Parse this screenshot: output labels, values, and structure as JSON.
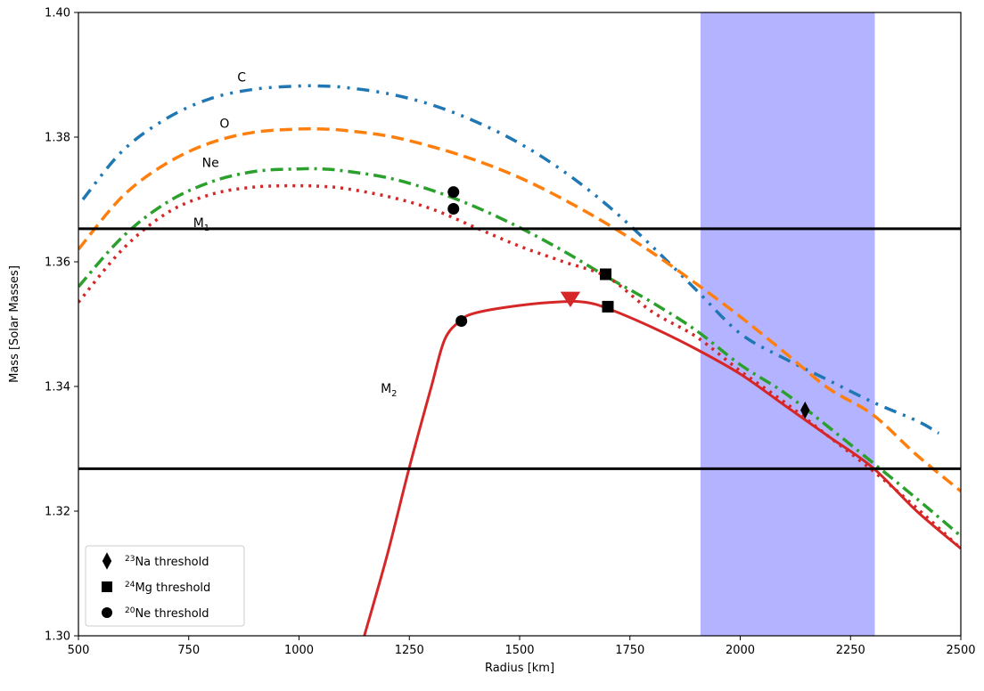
{
  "chart_data": {
    "type": "line",
    "title": "",
    "xlabel": "Radius [km]",
    "ylabel": "Mass [Solar Masses]",
    "xlim": [
      500,
      2500
    ],
    "ylim": [
      1.3,
      1.4
    ],
    "xticks": [
      500,
      750,
      1000,
      1250,
      1500,
      1750,
      2000,
      2250,
      2500
    ],
    "yticks": [
      1.3,
      1.32,
      1.34,
      1.36,
      1.38,
      1.4
    ],
    "xtick_labels": [
      "500",
      "750",
      "1000",
      "1250",
      "1500",
      "1750",
      "2000",
      "2250",
      "2500"
    ],
    "ytick_labels": [
      "1.30",
      "1.32",
      "1.34",
      "1.36",
      "1.38",
      "1.40"
    ],
    "grid": false,
    "legend_position": "bottom-left",
    "shaded_band": {
      "x": [
        1910,
        2305
      ],
      "color": "#b3b3ff"
    },
    "hlines": [
      {
        "y": 1.3653,
        "label": "M",
        "subscript": "1",
        "label_x": 760
      },
      {
        "y": 1.3268,
        "color": "#000000"
      }
    ],
    "series": [
      {
        "label": "C",
        "label_at": [
          860,
          1.3889
        ],
        "color": "#1f77b4",
        "style": "dashdotdot",
        "x": [
          510,
          600,
          700,
          800,
          900,
          1000,
          1050,
          1100,
          1200,
          1300,
          1400,
          1500,
          1600,
          1700,
          1800,
          1900,
          2000,
          2100,
          2200,
          2300,
          2400,
          2450
        ],
        "y": [
          1.37,
          1.3778,
          1.383,
          1.3862,
          1.3877,
          1.3882,
          1.3882,
          1.388,
          1.387,
          1.3852,
          1.3825,
          1.379,
          1.3745,
          1.369,
          1.3625,
          1.3555,
          1.3485,
          1.3445,
          1.341,
          1.3375,
          1.3345,
          1.3325
        ]
      },
      {
        "label": "O",
        "label_at": [
          820,
          1.3815
        ],
        "color": "#ff7f0e",
        "style": "dashed",
        "x": [
          500,
          600,
          700,
          800,
          900,
          1000,
          1050,
          1100,
          1200,
          1300,
          1400,
          1500,
          1600,
          1700,
          1800,
          1900,
          2000,
          2100,
          2200,
          2300,
          2400,
          2500
        ],
        "y": [
          1.362,
          1.3705,
          1.3758,
          1.3791,
          1.3808,
          1.3813,
          1.3813,
          1.3811,
          1.3802,
          1.3785,
          1.3763,
          1.3735,
          1.37,
          1.366,
          1.3615,
          1.3565,
          1.3512,
          1.3455,
          1.3397,
          1.3355,
          1.329,
          1.3232
        ]
      },
      {
        "label": "Ne",
        "label_at": [
          780,
          1.3752
        ],
        "color": "#2ca02c",
        "style": "dashdot",
        "x": [
          500,
          600,
          700,
          800,
          900,
          1000,
          1050,
          1100,
          1200,
          1300,
          1400,
          1500,
          1600,
          1700,
          1800,
          1900,
          2000,
          2100,
          2200,
          2300,
          2400,
          2500
        ],
        "y": [
          1.356,
          1.364,
          1.3695,
          1.3728,
          1.3745,
          1.3749,
          1.3749,
          1.3746,
          1.3735,
          1.3715,
          1.3688,
          1.3655,
          1.3617,
          1.3575,
          1.3535,
          1.349,
          1.3435,
          1.339,
          1.3335,
          1.3278,
          1.322,
          1.316
        ]
      },
      {
        "label": "",
        "color": "#d62728",
        "style": "dotted",
        "x": [
          500,
          600,
          700,
          800,
          900,
          1000,
          1050,
          1100,
          1200,
          1300,
          1400,
          1500,
          1600,
          1700,
          1800,
          1900,
          2000,
          2100,
          2200,
          2300,
          2400,
          2500
        ],
        "y": [
          1.3535,
          1.362,
          1.3678,
          1.3708,
          1.372,
          1.3722,
          1.3721,
          1.3718,
          1.3705,
          1.3685,
          1.3655,
          1.3625,
          1.36,
          1.3575,
          1.352,
          1.348,
          1.3425,
          1.3375,
          1.332,
          1.3265,
          1.3205,
          1.314
        ]
      },
      {
        "label": "M",
        "label_subscript": "2",
        "label_at": [
          1185,
          1.339
        ],
        "color": "#d62728",
        "style": "solid",
        "x": [
          1148,
          1200,
          1250,
          1300,
          1330,
          1365,
          1400,
          1500,
          1600,
          1650,
          1700,
          1800,
          1900,
          2000,
          2100,
          2200,
          2300,
          2400,
          2500
        ],
        "y": [
          1.3,
          1.313,
          1.327,
          1.34,
          1.3475,
          1.3505,
          1.3518,
          1.353,
          1.3536,
          1.3535,
          1.3525,
          1.3495,
          1.346,
          1.342,
          1.337,
          1.332,
          1.327,
          1.32,
          1.314
        ]
      }
    ],
    "markers": [
      {
        "shape": "diamond",
        "x": 2147,
        "y": 1.3362
      },
      {
        "shape": "square",
        "x": 1695,
        "y": 1.358
      },
      {
        "shape": "square",
        "x": 1700,
        "y": 1.3528
      },
      {
        "shape": "circle",
        "x": 1350,
        "y": 1.3712
      },
      {
        "shape": "circle",
        "x": 1350,
        "y": 1.3685
      },
      {
        "shape": "circle",
        "x": 1368,
        "y": 1.3505
      },
      {
        "shape": "triangle-down",
        "x": 1615,
        "y": 1.3536,
        "color": "#d62728"
      }
    ],
    "legend": [
      {
        "shape": "diamond",
        "sup": "23",
        "text": "Na threshold"
      },
      {
        "shape": "square",
        "sup": "24",
        "text": "Mg threshold"
      },
      {
        "shape": "circle",
        "sup": "20",
        "text": "Ne threshold"
      }
    ]
  }
}
